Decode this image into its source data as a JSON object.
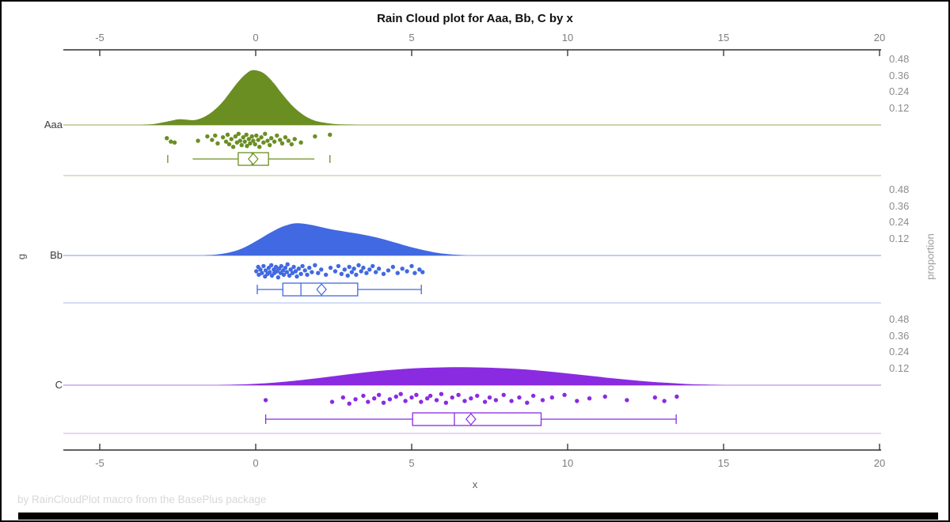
{
  "title": "Rain Cloud plot for Aaa, Bb, C by x",
  "footer": "by RainCloudPlot macro from the BasePlus package",
  "x_axis": {
    "label": "x",
    "ticks": [
      -5,
      0,
      5,
      10,
      15,
      20
    ]
  },
  "y_axis": {
    "label": "g",
    "categories": [
      "Aaa",
      "Bb",
      "C"
    ]
  },
  "right_axis": {
    "label": "proportion",
    "ticks": [
      0.48,
      0.36,
      0.24,
      0.12
    ]
  },
  "chart_data": {
    "type": "raincloud",
    "x_range": [
      -6.2,
      20.1
    ],
    "proportion_range": [
      0,
      0.6
    ],
    "groups": [
      {
        "name": "Aaa",
        "color": "#6B8E23",
        "baseline_color": "#b7c68e",
        "separator_color": "#cfd9b4",
        "density": [
          [
            -3.7,
            0
          ],
          [
            -3.3,
            0.006
          ],
          [
            -3.0,
            0.018
          ],
          [
            -2.7,
            0.032
          ],
          [
            -2.45,
            0.042
          ],
          [
            -2.2,
            0.038
          ],
          [
            -2.0,
            0.035
          ],
          [
            -1.8,
            0.045
          ],
          [
            -1.6,
            0.065
          ],
          [
            -1.4,
            0.095
          ],
          [
            -1.2,
            0.135
          ],
          [
            -1.0,
            0.185
          ],
          [
            -0.8,
            0.245
          ],
          [
            -0.6,
            0.305
          ],
          [
            -0.4,
            0.355
          ],
          [
            -0.2,
            0.392
          ],
          [
            -0.05,
            0.4
          ],
          [
            0.2,
            0.385
          ],
          [
            0.4,
            0.35
          ],
          [
            0.6,
            0.3
          ],
          [
            0.8,
            0.24
          ],
          [
            1.0,
            0.185
          ],
          [
            1.2,
            0.135
          ],
          [
            1.4,
            0.095
          ],
          [
            1.6,
            0.063
          ],
          [
            1.8,
            0.04
          ],
          [
            2.0,
            0.025
          ],
          [
            2.3,
            0.013
          ],
          [
            2.6,
            0.006
          ],
          [
            3.0,
            0.002
          ],
          [
            3.3,
            0
          ]
        ],
        "box": {
          "lo": -2.02,
          "q1": -0.56,
          "med": -0.12,
          "mean": -0.08,
          "q3": 0.41,
          "hi": 1.88,
          "caps": false,
          "fences": [
            -2.82,
            2.38
          ]
        },
        "points": [
          [
            -2.85,
            0.35
          ],
          [
            -2.72,
            0.55
          ],
          [
            -2.6,
            0.6
          ],
          [
            -1.85,
            0.5
          ],
          [
            -1.55,
            0.25
          ],
          [
            -1.4,
            0.45
          ],
          [
            -1.3,
            0.2
          ],
          [
            -1.22,
            0.65
          ],
          [
            -1.05,
            0.3
          ],
          [
            -0.95,
            0.55
          ],
          [
            -0.9,
            0.15
          ],
          [
            -0.85,
            0.7
          ],
          [
            -0.78,
            0.4
          ],
          [
            -0.72,
            0.85
          ],
          [
            -0.65,
            0.25
          ],
          [
            -0.6,
            0.6
          ],
          [
            -0.55,
            0.1
          ],
          [
            -0.5,
            0.5
          ],
          [
            -0.45,
            0.75
          ],
          [
            -0.4,
            0.3
          ],
          [
            -0.35,
            0.55
          ],
          [
            -0.3,
            0.15
          ],
          [
            -0.28,
            0.8
          ],
          [
            -0.22,
            0.4
          ],
          [
            -0.18,
            0.65
          ],
          [
            -0.12,
            0.25
          ],
          [
            -0.08,
            0.5
          ],
          [
            -0.02,
            0.7
          ],
          [
            0.02,
            0.2
          ],
          [
            0.08,
            0.45
          ],
          [
            0.12,
            0.85
          ],
          [
            0.18,
            0.3
          ],
          [
            0.25,
            0.6
          ],
          [
            0.3,
            0.1
          ],
          [
            0.38,
            0.5
          ],
          [
            0.45,
            0.75
          ],
          [
            0.5,
            0.35
          ],
          [
            0.6,
            0.55
          ],
          [
            0.68,
            0.2
          ],
          [
            0.78,
            0.45
          ],
          [
            0.85,
            0.65
          ],
          [
            0.95,
            0.3
          ],
          [
            1.05,
            0.5
          ],
          [
            1.15,
            0.7
          ],
          [
            1.25,
            0.4
          ],
          [
            1.45,
            0.6
          ],
          [
            1.9,
            0.25
          ],
          [
            2.38,
            0.15
          ]
        ]
      },
      {
        "name": "Bb",
        "color": "#4169E1",
        "baseline_color": "#aabef0",
        "separator_color": "#c5d2f5",
        "density": [
          [
            -1.7,
            0
          ],
          [
            -1.3,
            0.006
          ],
          [
            -1.0,
            0.015
          ],
          [
            -0.7,
            0.03
          ],
          [
            -0.4,
            0.055
          ],
          [
            -0.1,
            0.09
          ],
          [
            0.2,
            0.13
          ],
          [
            0.5,
            0.17
          ],
          [
            0.8,
            0.205
          ],
          [
            1.1,
            0.228
          ],
          [
            1.3,
            0.235
          ],
          [
            1.5,
            0.233
          ],
          [
            1.8,
            0.222
          ],
          [
            2.1,
            0.207
          ],
          [
            2.4,
            0.192
          ],
          [
            2.7,
            0.18
          ],
          [
            3.0,
            0.169
          ],
          [
            3.3,
            0.158
          ],
          [
            3.6,
            0.145
          ],
          [
            3.9,
            0.13
          ],
          [
            4.2,
            0.112
          ],
          [
            4.5,
            0.092
          ],
          [
            4.8,
            0.072
          ],
          [
            5.1,
            0.054
          ],
          [
            5.4,
            0.038
          ],
          [
            5.7,
            0.024
          ],
          [
            6.0,
            0.014
          ],
          [
            6.4,
            0.006
          ],
          [
            6.8,
            0
          ]
        ],
        "box": {
          "lo": 0.05,
          "q1": 0.87,
          "med": 1.45,
          "mean": 2.11,
          "q3": 3.27,
          "hi": 5.31,
          "caps": true,
          "fences": []
        },
        "points": [
          [
            0.02,
            0.5
          ],
          [
            0.08,
            0.25
          ],
          [
            0.1,
            0.7
          ],
          [
            0.15,
            0.4
          ],
          [
            0.2,
            0.6
          ],
          [
            0.25,
            0.2
          ],
          [
            0.3,
            0.8
          ],
          [
            0.32,
            0.45
          ],
          [
            0.38,
            0.65
          ],
          [
            0.42,
            0.3
          ],
          [
            0.45,
            0.55
          ],
          [
            0.5,
            0.15
          ],
          [
            0.52,
            0.75
          ],
          [
            0.58,
            0.4
          ],
          [
            0.6,
            0.6
          ],
          [
            0.65,
            0.25
          ],
          [
            0.68,
            0.5
          ],
          [
            0.72,
            0.85
          ],
          [
            0.75,
            0.35
          ],
          [
            0.8,
            0.6
          ],
          [
            0.82,
            0.2
          ],
          [
            0.88,
            0.45
          ],
          [
            0.9,
            0.7
          ],
          [
            0.95,
            0.3
          ],
          [
            1.0,
            0.55
          ],
          [
            1.02,
            0.1
          ],
          [
            1.08,
            0.75
          ],
          [
            1.12,
            0.4
          ],
          [
            1.18,
            0.6
          ],
          [
            1.22,
            0.25
          ],
          [
            1.28,
            0.5
          ],
          [
            1.32,
            0.8
          ],
          [
            1.38,
            0.35
          ],
          [
            1.45,
            0.65
          ],
          [
            1.5,
            0.2
          ],
          [
            1.58,
            0.45
          ],
          [
            1.65,
            0.7
          ],
          [
            1.72,
            0.3
          ],
          [
            1.8,
            0.55
          ],
          [
            1.9,
            0.15
          ],
          [
            2.0,
            0.6
          ],
          [
            2.1,
            0.4
          ],
          [
            2.25,
            0.7
          ],
          [
            2.4,
            0.3
          ],
          [
            2.55,
            0.5
          ],
          [
            2.65,
            0.2
          ],
          [
            2.75,
            0.65
          ],
          [
            2.85,
            0.4
          ],
          [
            2.95,
            0.75
          ],
          [
            3.0,
            0.25
          ],
          [
            3.08,
            0.55
          ],
          [
            3.15,
            0.35
          ],
          [
            3.22,
            0.7
          ],
          [
            3.3,
            0.15
          ],
          [
            3.38,
            0.5
          ],
          [
            3.45,
            0.3
          ],
          [
            3.55,
            0.6
          ],
          [
            3.65,
            0.4
          ],
          [
            3.75,
            0.2
          ],
          [
            3.85,
            0.55
          ],
          [
            3.95,
            0.35
          ],
          [
            4.1,
            0.65
          ],
          [
            4.25,
            0.45
          ],
          [
            4.4,
            0.25
          ],
          [
            4.55,
            0.6
          ],
          [
            4.7,
            0.35
          ],
          [
            4.85,
            0.5
          ],
          [
            5.0,
            0.2
          ],
          [
            5.1,
            0.6
          ],
          [
            5.25,
            0.4
          ],
          [
            5.35,
            0.55
          ]
        ]
      },
      {
        "name": "C",
        "color": "#8A2BE2",
        "baseline_color": "#cba4f0",
        "separator_color": "#ddc7f6",
        "density": [
          [
            -1.2,
            0
          ],
          [
            -0.6,
            0.004
          ],
          [
            0,
            0.01
          ],
          [
            0.6,
            0.019
          ],
          [
            1.2,
            0.031
          ],
          [
            1.8,
            0.046
          ],
          [
            2.4,
            0.063
          ],
          [
            3.0,
            0.08
          ],
          [
            3.6,
            0.096
          ],
          [
            4.2,
            0.109
          ],
          [
            4.8,
            0.119
          ],
          [
            5.4,
            0.126
          ],
          [
            6.0,
            0.13
          ],
          [
            6.6,
            0.131
          ],
          [
            7.2,
            0.129
          ],
          [
            7.8,
            0.125
          ],
          [
            8.4,
            0.118
          ],
          [
            9.0,
            0.108
          ],
          [
            9.6,
            0.095
          ],
          [
            10.2,
            0.081
          ],
          [
            10.8,
            0.066
          ],
          [
            11.4,
            0.051
          ],
          [
            12.0,
            0.038
          ],
          [
            12.6,
            0.026
          ],
          [
            13.2,
            0.017
          ],
          [
            13.8,
            0.009
          ],
          [
            14.4,
            0.004
          ],
          [
            15.0,
            0
          ]
        ],
        "box": {
          "lo": 0.32,
          "q1": 5.03,
          "med": 6.37,
          "mean": 6.9,
          "q3": 9.15,
          "hi": 13.48,
          "caps": true,
          "fences": []
        },
        "points": [
          [
            0.32,
            0.45
          ],
          [
            2.45,
            0.55
          ],
          [
            2.8,
            0.3
          ],
          [
            3.0,
            0.65
          ],
          [
            3.2,
            0.4
          ],
          [
            3.45,
            0.2
          ],
          [
            3.6,
            0.55
          ],
          [
            3.8,
            0.35
          ],
          [
            3.95,
            0.15
          ],
          [
            4.1,
            0.6
          ],
          [
            4.3,
            0.4
          ],
          [
            4.5,
            0.25
          ],
          [
            4.65,
            0.1
          ],
          [
            4.8,
            0.5
          ],
          [
            5.0,
            0.3
          ],
          [
            5.15,
            0.15
          ],
          [
            5.3,
            0.55
          ],
          [
            5.5,
            0.35
          ],
          [
            5.6,
            0.2
          ],
          [
            5.8,
            0.45
          ],
          [
            5.95,
            0.1
          ],
          [
            6.1,
            0.6
          ],
          [
            6.3,
            0.3
          ],
          [
            6.5,
            0.15
          ],
          [
            6.7,
            0.5
          ],
          [
            6.9,
            0.35
          ],
          [
            7.1,
            0.2
          ],
          [
            7.35,
            0.55
          ],
          [
            7.5,
            0.3
          ],
          [
            7.7,
            0.45
          ],
          [
            7.95,
            0.15
          ],
          [
            8.2,
            0.5
          ],
          [
            8.45,
            0.3
          ],
          [
            8.7,
            0.6
          ],
          [
            8.9,
            0.2
          ],
          [
            9.2,
            0.45
          ],
          [
            9.5,
            0.3
          ],
          [
            9.9,
            0.15
          ],
          [
            10.3,
            0.5
          ],
          [
            10.7,
            0.35
          ],
          [
            11.2,
            0.25
          ],
          [
            11.9,
            0.45
          ],
          [
            12.8,
            0.3
          ],
          [
            13.1,
            0.5
          ],
          [
            13.5,
            0.25
          ]
        ]
      }
    ]
  }
}
